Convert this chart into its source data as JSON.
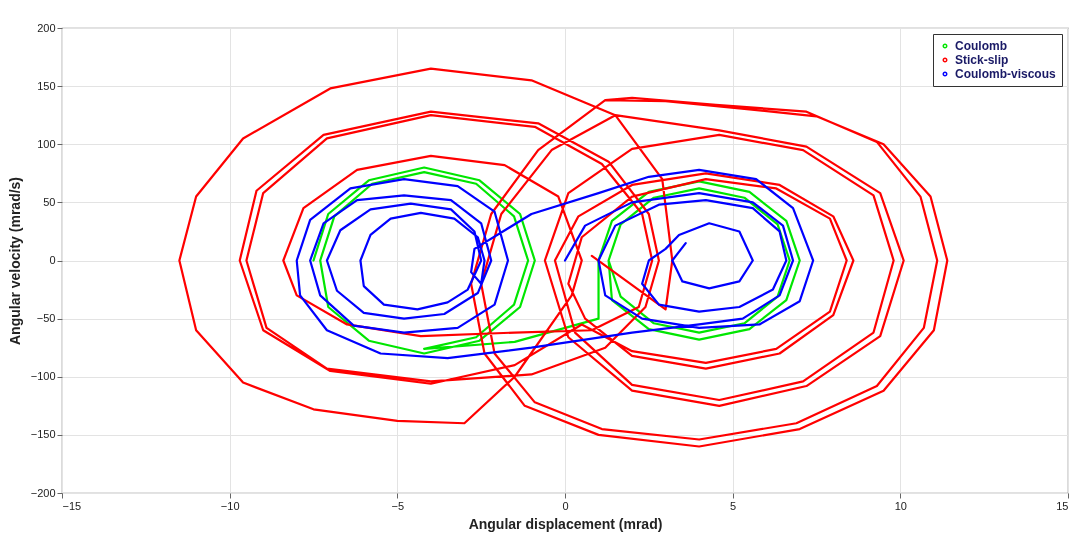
{
  "chart_data": {
    "type": "line",
    "xlabel": "Angular displacement (mrad)",
    "ylabel": "Angular velocity (mrad/s)",
    "xlim": [
      -15,
      15
    ],
    "xticks": [
      -15,
      -10,
      -5,
      0,
      5,
      10,
      15
    ],
    "ylim": [
      -200,
      200
    ],
    "yticks": [
      -200,
      -150,
      -100,
      -50,
      0,
      50,
      100,
      150,
      200
    ],
    "grid": true,
    "legend": "top right",
    "line_style": "solid",
    "series": [
      {
        "name": "Coulomb",
        "color": "#00e600",
        "x": [
          -7.5,
          -7.06,
          -5.85,
          -4.2,
          -2.55,
          -1.34,
          -0.9,
          -1.34,
          -2.55,
          -4.2,
          -5.85,
          -7.06,
          -7.3,
          -6.88,
          -5.75,
          -4.2,
          -2.65,
          -1.52,
          -1.1,
          -1.52,
          -2.65,
          -4.2,
          -1.5,
          1.0,
          1.0,
          1.4,
          2.5,
          4.0,
          5.5,
          6.6,
          7.0,
          6.6,
          5.5,
          4.0,
          2.5,
          1.4,
          1.3,
          1.66,
          2.65,
          4.0,
          5.35,
          6.34,
          6.7,
          6.34,
          5.35,
          4.0,
          2.65,
          1.66,
          1.3
        ],
        "values": [
          0,
          40,
          69,
          80,
          69,
          40,
          0,
          -40,
          -69,
          -80,
          -69,
          -40,
          0,
          38,
          66,
          76,
          66,
          38,
          0,
          -38,
          -66,
          -76,
          -70,
          -50,
          0,
          34,
          59,
          68,
          59,
          34,
          0,
          -34,
          -59,
          -68,
          -59,
          -34,
          0,
          31,
          54,
          62,
          54,
          31,
          0,
          -31,
          -54,
          -62,
          -54,
          -31,
          0
        ]
      },
      {
        "name": "Stick-slip",
        "color": "#ff0000",
        "x": [
          1.2,
          3,
          5.5,
          7.5,
          9.5,
          10.9,
          11.4,
          11,
          9.5,
          7,
          4,
          1,
          -1.2,
          -2.4,
          -2.8,
          -2.2,
          -0.8,
          1.2,
          2,
          4.5,
          7.2,
          9.3,
          10.6,
          11.1,
          10.7,
          9.3,
          6.9,
          4,
          1.1,
          -0.9,
          -2.1,
          -2.5,
          -1.9,
          -0.4,
          1.5,
          4.6,
          7.2,
          9.4,
          10.1,
          9.4,
          7.2,
          4.6,
          2,
          0.1,
          -0.6,
          0.1,
          2,
          4.6,
          7.1,
          9.2,
          9.8,
          9.2,
          7.1,
          4.6,
          2,
          0.3,
          -0.3,
          0.4,
          2,
          4.2,
          6.4,
          8,
          8.6,
          8,
          6.4,
          4.2,
          2,
          0.6,
          0.1,
          0.5,
          2,
          4.2,
          6.3,
          7.9,
          8.4,
          7.9,
          6.3,
          4.2,
          2,
          0.5,
          -1.5,
          -4,
          -7,
          -9,
          -9.7,
          -9.2,
          -7.2,
          -4,
          -0.8,
          1.3,
          2.5,
          2.8,
          2.4,
          1.2,
          -1,
          -4,
          -7.1,
          -8.9,
          -9.5,
          -9,
          -7.1,
          -4,
          -0.9,
          1.1,
          2.3,
          2.6,
          2.2,
          0.8,
          -1.5,
          -4.3,
          -6.5,
          -8,
          -8.4,
          -7.8,
          -6.2,
          -4,
          -1.8,
          -0.2,
          0.5,
          0.2,
          -1.5,
          -3,
          -5,
          -7.5,
          -9.6,
          -11,
          -11.5,
          -11,
          -9.6,
          -7,
          -4,
          -1,
          1.5,
          2.9,
          3.2,
          3.0,
          0.8
        ],
        "values": [
          138,
          137,
          130,
          124,
          100,
          55,
          0,
          -60,
          -112,
          -145,
          -160,
          -150,
          -125,
          -80,
          -20,
          40,
          95,
          138,
          140,
          134,
          128,
          102,
          55,
          0,
          -58,
          -108,
          -140,
          -154,
          -145,
          -122,
          -80,
          -20,
          40,
          95,
          125,
          112,
          98,
          58,
          0,
          -65,
          -108,
          -125,
          -112,
          -66,
          0,
          58,
          96,
          108,
          95,
          56,
          0,
          -62,
          -104,
          -120,
          -107,
          -62,
          0,
          38,
          65,
          75,
          65,
          38,
          0,
          -47,
          -80,
          -93,
          -82,
          -50,
          -20,
          20,
          55,
          70,
          62,
          36,
          0,
          -44,
          -76,
          -88,
          -78,
          -55,
          -90,
          -106,
          -95,
          -60,
          0,
          60,
          108,
          128,
          118,
          85,
          40,
          0,
          -40,
          -75,
          -98,
          -104,
          -93,
          -58,
          0,
          58,
          105,
          125,
          115,
          83,
          40,
          0,
          -40,
          -60,
          -62,
          -65,
          -55,
          -30,
          0,
          45,
          78,
          90,
          82,
          55,
          0,
          -30,
          -100,
          -140,
          -138,
          -128,
          -105,
          -60,
          0,
          55,
          105,
          148,
          165,
          155,
          125,
          70,
          0,
          -42,
          4
        ]
      },
      {
        "name": "Coulomb-viscous",
        "color": "#0000ff",
        "x": [
          0,
          0.6,
          2,
          4,
          5.6,
          6.5,
          6.8,
          6.4,
          5.3,
          4,
          2,
          -1,
          -3.5,
          -5.5,
          -7.1,
          -7.9,
          -8.0,
          -7.6,
          -6.4,
          -4.8,
          -3.2,
          -2.1,
          -1.7,
          -2.1,
          -3.2,
          -4.8,
          -6.3,
          -7.3,
          -7.6,
          -7.2,
          -6.2,
          -4.8,
          -3.4,
          -2.5,
          -2.2,
          -2.6,
          -3.6,
          -4.8,
          -6.0,
          -6.8,
          -7.1,
          -6.7,
          -5.8,
          -4.6,
          -3.4,
          -2.7,
          -2.5,
          -2.9,
          -3.5,
          -4.4,
          -5.4,
          -6.0,
          -6.1,
          -5.8,
          -5.2,
          -4.3,
          -3.3,
          -2.6,
          -2.4,
          -2.5,
          -2.8,
          -2.7,
          -1,
          1,
          2.5,
          4,
          5.7,
          6.8,
          7.4,
          7.0,
          5.8,
          4,
          2.3,
          1.2,
          1.0,
          1.5,
          2.8,
          4.2,
          5.6,
          6.4,
          6.6,
          6.2,
          5.2,
          4,
          2.8,
          2.3,
          2.5,
          3.0,
          3.4,
          4.3,
          5.2,
          5.6,
          5.2,
          4.3,
          3.5,
          3.2,
          3.6
        ],
        "values": [
          0,
          30,
          50,
          58,
          50,
          30,
          0,
          -30,
          -50,
          -55,
          -62,
          -75,
          -84,
          -80,
          -60,
          -30,
          0,
          35,
          62,
          70,
          64,
          42,
          0,
          -38,
          -58,
          -62,
          -56,
          -30,
          0,
          32,
          52,
          56,
          52,
          32,
          0,
          -28,
          -46,
          -50,
          -45,
          -26,
          0,
          26,
          44,
          49,
          44,
          25,
          0,
          -25,
          -36,
          -42,
          -38,
          -22,
          0,
          22,
          36,
          41,
          36,
          20,
          0,
          -20,
          -10,
          10,
          40,
          58,
          72,
          78,
          70,
          45,
          0,
          -35,
          -55,
          -58,
          -50,
          -30,
          0,
          30,
          48,
          52,
          45,
          25,
          0,
          -25,
          -40,
          -44,
          -38,
          -20,
          0,
          10,
          22,
          32,
          25,
          0,
          -18,
          -24,
          -18,
          0,
          15
        ]
      }
    ]
  }
}
